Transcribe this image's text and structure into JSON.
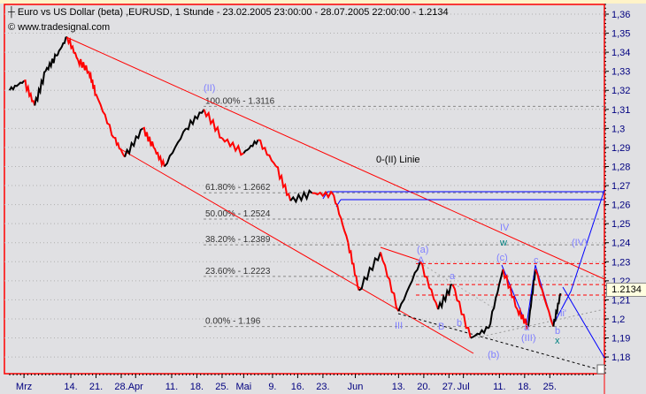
{
  "header": {
    "title": "Euro vs US Dollar (beta) ,EURUSD, 1 Stunde - 23.02.2005 23:00:00 - 28.07.2005 22:00:00 - 1.2134",
    "copyright": "www.tradesignal.com"
  },
  "colors": {
    "background": "#e0e0e3",
    "frame": "#ff0000",
    "up": "#000000",
    "down": "#ff0000",
    "wave_labels": "#8080ff",
    "channel": "#ff0000",
    "projection": "#0000ff",
    "fib": "#999999"
  },
  "chart_data": {
    "type": "line",
    "title": "Euro vs US Dollar (beta) ,EURUSD, 1 Stunde",
    "ylim": [
      1.175,
      1.365
    ],
    "grid": true,
    "y_ticks": [
      "1,36",
      "1,35",
      "1,34",
      "1,33",
      "1,32",
      "1,31",
      "1,3",
      "1,29",
      "1,28",
      "1,27",
      "1,26",
      "1,25",
      "1,24",
      "1,23",
      "1,22",
      "1,21",
      "1,2",
      "1,19",
      "1,18"
    ],
    "x_ticks": [
      {
        "label": "Mrz",
        "date": "2005-03-01"
      },
      {
        "label": "14.",
        "date": "2005-03-14"
      },
      {
        "label": "21.",
        "date": "2005-03-21"
      },
      {
        "label": "28.",
        "date": "2005-03-28"
      },
      {
        "label": "Apr",
        "date": "2005-04-01"
      },
      {
        "label": "11.",
        "date": "2005-04-11"
      },
      {
        "label": "18.",
        "date": "2005-04-18"
      },
      {
        "label": "25.",
        "date": "2005-04-25"
      },
      {
        "label": "Mai",
        "date": "2005-05-01"
      },
      {
        "label": "9.",
        "date": "2005-05-09"
      },
      {
        "label": "16.",
        "date": "2005-05-16"
      },
      {
        "label": "23.",
        "date": "2005-05-23"
      },
      {
        "label": "Jun",
        "date": "2005-06-01"
      },
      {
        "label": "13.",
        "date": "2005-06-13"
      },
      {
        "label": "20.",
        "date": "2005-06-20"
      },
      {
        "label": "27.",
        "date": "2005-06-27"
      },
      {
        "label": "Jul",
        "date": "2005-07-01"
      },
      {
        "label": "11.",
        "date": "2005-07-11"
      },
      {
        "label": "18.",
        "date": "2005-07-18"
      },
      {
        "label": "25.",
        "date": "2005-07-25"
      }
    ],
    "series": [
      {
        "points": [
          [
            "2005-02-25",
            1.32
          ],
          [
            "2005-03-01",
            1.325
          ],
          [
            "2005-03-04",
            1.312
          ],
          [
            "2005-03-07",
            1.33
          ],
          [
            "2005-03-10",
            1.338
          ],
          [
            "2005-03-13",
            1.348
          ],
          [
            "2005-03-16",
            1.336
          ],
          [
            "2005-03-19",
            1.33
          ],
          [
            "2005-03-21",
            1.318
          ],
          [
            "2005-03-26",
            1.295
          ],
          [
            "2005-03-29",
            1.285
          ],
          [
            "2005-04-03",
            1.3
          ],
          [
            "2005-04-06",
            1.29
          ],
          [
            "2005-04-09",
            1.28
          ],
          [
            "2005-04-15",
            1.3
          ],
          [
            "2005-04-20",
            1.31
          ],
          [
            "2005-04-25",
            1.295
          ],
          [
            "2005-05-01",
            1.287
          ],
          [
            "2005-05-05",
            1.294
          ],
          [
            "2005-05-10",
            1.28
          ],
          [
            "2005-05-14",
            1.262
          ],
          [
            "2005-05-20",
            1.266
          ],
          [
            "2005-05-26",
            1.265
          ],
          [
            "2005-05-30",
            1.24
          ],
          [
            "2005-06-02",
            1.215
          ],
          [
            "2005-06-08",
            1.235
          ],
          [
            "2005-06-13",
            1.204
          ],
          [
            "2005-06-19",
            1.23
          ],
          [
            "2005-06-24",
            1.205
          ],
          [
            "2005-06-28",
            1.218
          ],
          [
            "2005-07-03",
            1.19
          ],
          [
            "2005-07-08",
            1.195
          ],
          [
            "2005-07-12",
            1.226
          ],
          [
            "2005-07-16",
            1.205
          ],
          [
            "2005-07-19",
            1.196
          ],
          [
            "2005-07-21",
            1.226
          ],
          [
            "2005-07-26",
            1.196
          ],
          [
            "2005-07-28",
            1.2134
          ]
        ]
      }
    ],
    "last_price": "1.2134",
    "fib_levels": [
      {
        "label": "100.00% - 1.3116",
        "value": 1.3116
      },
      {
        "label": "61.80% - 1.2662",
        "value": 1.2662
      },
      {
        "label": "50.00% - 1.2524",
        "value": 1.2524
      },
      {
        "label": "38.20% - 1.2389",
        "value": 1.2389
      },
      {
        "label": "23.60% - 1.2223",
        "value": 1.2223
      },
      {
        "label": "0.00% - 1.196",
        "value": 1.196
      }
    ],
    "annotations": [
      {
        "text": "0-(II) Linie"
      },
      {
        "text": "(II)"
      },
      {
        "text": "(a)"
      },
      {
        "text": "A"
      },
      {
        "text": "a"
      },
      {
        "text": "b"
      },
      {
        "text": "B"
      },
      {
        "text": "III"
      },
      {
        "text": "(b)"
      },
      {
        "text": "(c)"
      },
      {
        "text": "IV"
      },
      {
        "text": "w"
      },
      {
        "text": "c"
      },
      {
        "text": "a"
      },
      {
        "text": "(III)"
      },
      {
        "text": "b"
      },
      {
        "text": "x"
      },
      {
        "text": "ii'"
      },
      {
        "text": "(IV)"
      }
    ]
  }
}
